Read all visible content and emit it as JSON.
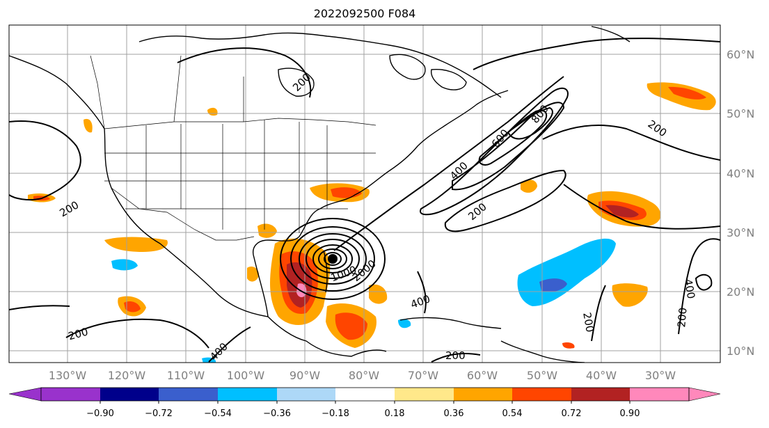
{
  "title": "2022092500 F084",
  "map": {
    "lon_range": [
      -140,
      -20
    ],
    "lat_range": [
      8,
      65
    ],
    "lat_labels": [
      "10°N",
      "20°N",
      "30°N",
      "40°N",
      "50°N",
      "60°N"
    ],
    "lon_labels": [
      "130°W",
      "120°W",
      "110°W",
      "100°W",
      "90°W",
      "80°W",
      "70°W",
      "60°W",
      "50°W",
      "40°W",
      "30°W"
    ],
    "contour_labels": [
      "200",
      "200",
      "200",
      "200",
      "200",
      "200",
      "200",
      "200",
      "400",
      "400",
      "400",
      "400",
      "600",
      "800",
      "1000",
      "2000"
    ],
    "land_color": "#ffffff",
    "line_color": "#000000",
    "grid_color": "#a0a0a0"
  },
  "colorbar": {
    "tick_labels": [
      "−0.90",
      "−0.72",
      "−0.54",
      "−0.36",
      "−0.18",
      "0.18",
      "0.36",
      "0.54",
      "0.72",
      "0.90"
    ],
    "colors": [
      "#9932cc",
      "#00008b",
      "#3a5fcd",
      "#00bfff",
      "#add8f7",
      "#ffffff",
      "#ffe88a",
      "#ffa500",
      "#ff4500",
      "#b22222",
      "#ff88bb"
    ]
  }
}
